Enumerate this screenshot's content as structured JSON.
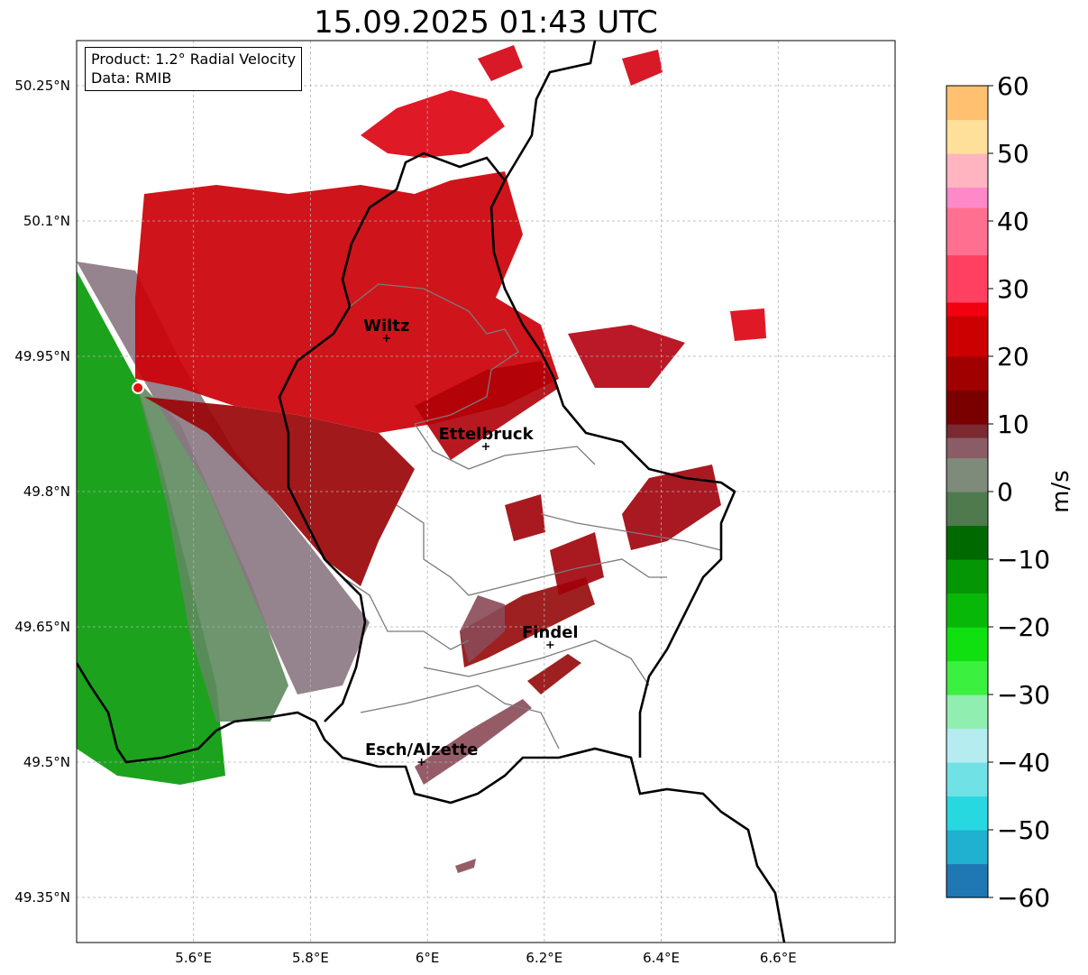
{
  "title": "15.09.2025 01:43 UTC",
  "info": {
    "product": "Product: 1.2° Radial Velocity",
    "data": "Data: RMIB"
  },
  "axes": {
    "lon_ticks": [
      {
        "v": 5.6,
        "label": "5.6°E"
      },
      {
        "v": 5.8,
        "label": "5.8°E"
      },
      {
        "v": 6.0,
        "label": "6°E"
      },
      {
        "v": 6.2,
        "label": "6.2°E"
      },
      {
        "v": 6.4,
        "label": "6.4°E"
      },
      {
        "v": 6.6,
        "label": "6.6°E"
      }
    ],
    "lat_ticks": [
      {
        "v": 50.25,
        "label": "50.25°N"
      },
      {
        "v": 50.1,
        "label": "50.1°N"
      },
      {
        "v": 49.95,
        "label": "49.95°N"
      },
      {
        "v": 49.8,
        "label": "49.8°N"
      },
      {
        "v": 49.65,
        "label": "49.65°N"
      },
      {
        "v": 49.5,
        "label": "49.5°N"
      },
      {
        "v": 49.35,
        "label": "49.35°N"
      }
    ],
    "extent": {
      "lon_min": 5.4,
      "lon_max": 6.8,
      "lat_min": 49.3,
      "lat_max": 50.3
    },
    "grid": true
  },
  "cities": [
    {
      "name": "Wiltz",
      "lon": 5.93,
      "lat": 49.97
    },
    {
      "name": "Ettelbruck",
      "lon": 6.1,
      "lat": 49.85
    },
    {
      "name": "Findel",
      "lon": 6.21,
      "lat": 49.63
    },
    {
      "name": "Esch/Alzette",
      "lon": 5.99,
      "lat": 49.5
    }
  ],
  "radar_site": {
    "lon": 5.505,
    "lat": 49.915
  },
  "colorbar": {
    "label": "m/s",
    "min": -60,
    "max": 60,
    "ticks": [
      {
        "v": 60,
        "label": "60"
      },
      {
        "v": 50,
        "label": "50"
      },
      {
        "v": 40,
        "label": "40"
      },
      {
        "v": 30,
        "label": "30"
      },
      {
        "v": 20,
        "label": "20"
      },
      {
        "v": 10,
        "label": "10"
      },
      {
        "v": 0,
        "label": "0"
      },
      {
        "v": -10,
        "label": "−10"
      },
      {
        "v": -20,
        "label": "−20"
      },
      {
        "v": -30,
        "label": "−30"
      },
      {
        "v": -40,
        "label": "−40"
      },
      {
        "v": -50,
        "label": "−50"
      },
      {
        "v": -60,
        "label": "−60"
      }
    ],
    "stops": [
      {
        "v": -60,
        "color": "#1f78b4"
      },
      {
        "v": -55,
        "color": "#20b0d0"
      },
      {
        "v": -50,
        "color": "#28d8e0"
      },
      {
        "v": -45,
        "color": "#70e2e6"
      },
      {
        "v": -40,
        "color": "#b5ecf0"
      },
      {
        "v": -35,
        "color": "#90eeb0"
      },
      {
        "v": -30,
        "color": "#3cf040"
      },
      {
        "v": -25,
        "color": "#10e010"
      },
      {
        "v": -20,
        "color": "#08b808"
      },
      {
        "v": -15,
        "color": "#059605"
      },
      {
        "v": -10,
        "color": "#006a00"
      },
      {
        "v": -5,
        "color": "#4e7a4e"
      },
      {
        "v": 0,
        "color": "#7e8a7a"
      },
      {
        "v": 5,
        "color": "#8a5c66"
      },
      {
        "v": 8,
        "color": "#7a2a30"
      },
      {
        "v": 10,
        "color": "#7a0000"
      },
      {
        "v": 15,
        "color": "#a00000"
      },
      {
        "v": 20,
        "color": "#cc0000"
      },
      {
        "v": 26,
        "color": "#f20010"
      },
      {
        "v": 28,
        "color": "#ff4060"
      },
      {
        "v": 35,
        "color": "#ff7090"
      },
      {
        "v": 42,
        "color": "#ff88c8"
      },
      {
        "v": 45,
        "color": "#ffb4c0"
      },
      {
        "v": 50,
        "color": "#ffe09a"
      },
      {
        "v": 55,
        "color": "#ffc070"
      },
      {
        "v": 60,
        "color": "#ff9a50"
      }
    ]
  }
}
